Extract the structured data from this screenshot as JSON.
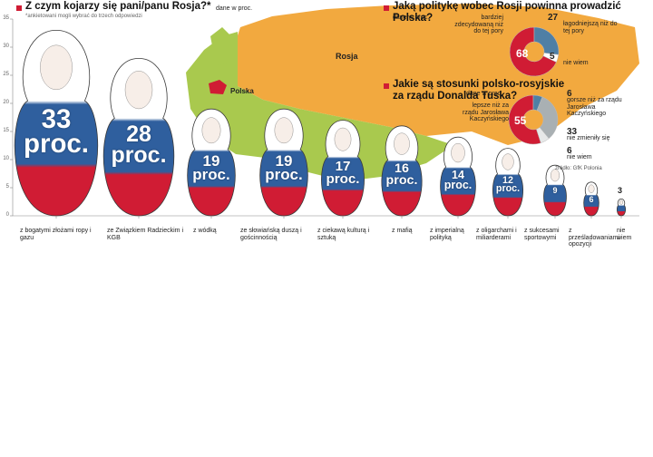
{
  "chart_data": [
    {
      "type": "bar",
      "title": "Z czym kojarzy się pani/panu Rosja?*",
      "subtitle": "dane w proc.",
      "note": "*ankietowani mogli wybrać do trzech odpowiedzi",
      "categories": [
        "z bogatymi złożami ropy i gazu",
        "ze Związkiem Radzieckim i KGB",
        "z wódką",
        "ze słowiańską duszą i gościnnością",
        "z ciekawą kulturą i sztuką",
        "z mafią",
        "z imperialną polityką",
        "z oligarchami i miliarderami",
        "z sukcesami sportowymi",
        "z prześladowaniami opozycji",
        "nie wiem"
      ],
      "values": [
        33,
        28,
        19,
        19,
        17,
        16,
        14,
        12,
        9,
        6,
        3
      ],
      "value_labels": [
        "33 proc.",
        "28 proc.",
        "19 proc.",
        "19 proc.",
        "17 proc.",
        "16 proc.",
        "14 proc.",
        "12 proc.",
        "9",
        "6",
        "3"
      ],
      "ylim": [
        0,
        35
      ],
      "yticks": [
        0,
        5,
        10,
        15,
        20,
        25,
        30,
        35
      ],
      "colors": [
        "#ffffff",
        "#2f5f9e",
        "#d01c34"
      ]
    },
    {
      "type": "pie",
      "title": "Jaką politykę wobec Rosji powinna prowadzić Polska?",
      "subtitle": "dane w proc.",
      "categories": [
        "bardziej zdecydowaną niż do tej pory",
        "łagodniejszą niż do tej pory",
        "nie wiem"
      ],
      "values": [
        68,
        27,
        5
      ],
      "colors": [
        "#d01c34",
        "#4f7fa5",
        "#ffffff"
      ]
    },
    {
      "type": "pie",
      "title": "Jakie są stosunki polsko-rosyjskie za rządu Donalda Tuska?",
      "subtitle": "dane w proc.",
      "categories": [
        "lepsze niż za rządu Jarosława Kaczyńskiego",
        "gorsze niż za rządu Jarosława Kaczyńskiego",
        "nie zmieniły się",
        "nie wiem"
      ],
      "values": [
        55,
        6,
        33,
        6
      ],
      "colors": [
        "#d01c34",
        "#4f7fa5",
        "#a9b0b3",
        "#e6e8e8"
      ]
    }
  ],
  "map": {
    "labels": [
      "Rosja",
      "Polska"
    ]
  },
  "source": "źródło: GfK Polonia"
}
